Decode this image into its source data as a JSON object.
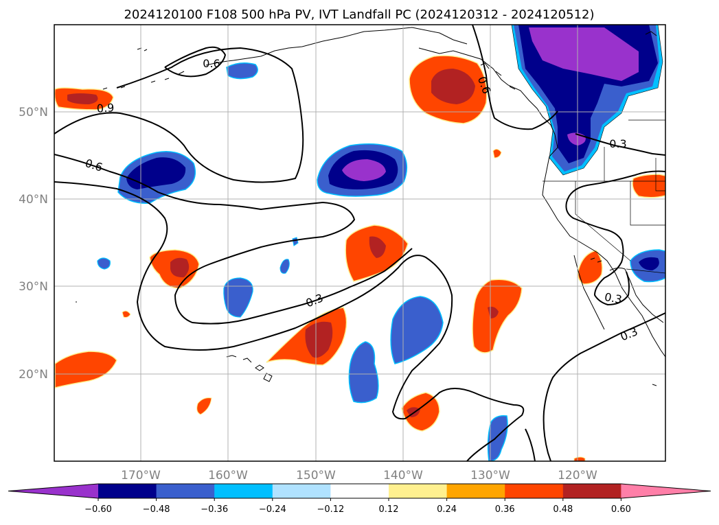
{
  "title": "2024120100 F108 500 hPa PV, IVT Landfall PC (2024120312 - 2024120512)",
  "map": {
    "lat_range": [
      10,
      60
    ],
    "lon_range": [
      -180,
      -110
    ],
    "lat_ticks": [
      "20°N",
      "30°N",
      "40°N",
      "50°N"
    ],
    "lon_ticks": [
      "170°W",
      "160°W",
      "150°W",
      "140°W",
      "130°W",
      "120°W"
    ],
    "grid": true,
    "contour_labels": [
      "0.9",
      "0.6",
      "0.3",
      "0.3",
      "0.6",
      "0.6",
      "0.3",
      "0.3"
    ]
  },
  "colorbar": {
    "orientation": "horizontal",
    "extend": "both",
    "ticks": [
      "−0.60",
      "−0.48",
      "−0.36",
      "−0.24",
      "−0.12",
      "0.12",
      "0.24",
      "0.36",
      "0.48",
      "0.60"
    ],
    "colors": [
      "#9932cc",
      "#00008b",
      "#3a5fcd",
      "#00bfff",
      "#b0e2ff",
      "#ffffff",
      "#fff08f",
      "#ffa500",
      "#ff4500",
      "#b22222",
      "#ff7fa8"
    ]
  },
  "colors": {
    "neg_purple": "#9932cc",
    "neg_navy": "#00008b",
    "neg_blue": "#3a5fcd",
    "neg_cyan": "#00bfff",
    "pos_yellow": "#fff08f",
    "pos_orange": "#ffa500",
    "pos_redorange": "#ff4500",
    "pos_firebrick": "#b22222",
    "grid": "#b0b0b0",
    "tick_text": "#808080"
  }
}
